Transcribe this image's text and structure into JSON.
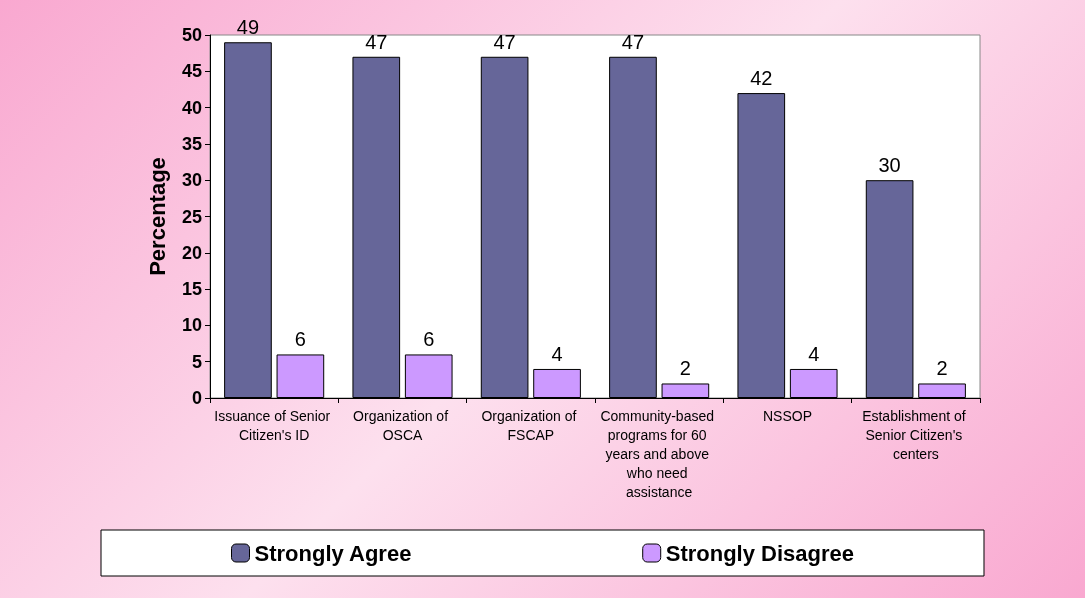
{
  "chart_data": {
    "type": "bar",
    "ylabel": "Percentage",
    "categories": [
      "Issuance of Senior Citizen's ID",
      "Organization of OSCA",
      "Organization of FSCAP",
      "Community-based programs for 60 years and above who need assistance",
      "NSSOP",
      "Establishment of Senior Citizen's centers"
    ],
    "series": [
      {
        "name": "Strongly Agree",
        "color": "#666699",
        "values": [
          49,
          47,
          47,
          47,
          42,
          30
        ]
      },
      {
        "name": "Strongly Disagree",
        "color": "#cc99ff",
        "values": [
          6,
          6,
          4,
          2,
          4,
          2
        ]
      }
    ],
    "ylim": [
      0,
      50
    ],
    "yticks": [
      0,
      5,
      10,
      15,
      20,
      25,
      30,
      35,
      40,
      45,
      50
    ],
    "data_labels": true,
    "legend": "bottom"
  }
}
